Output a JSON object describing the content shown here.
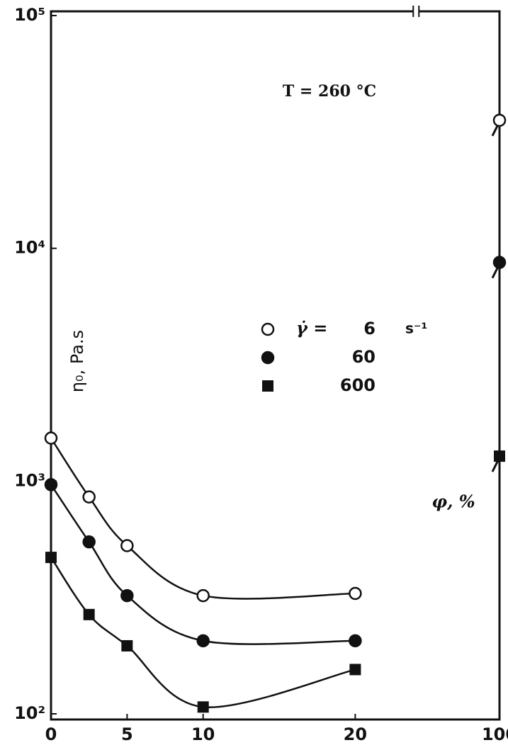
{
  "chart_data": {
    "type": "scatter",
    "annotation": "T = 260 °C",
    "y_label": "η₀, Pa.s",
    "x_label": "φ, %",
    "legend_prefix": "γ̇ =",
    "legend_unit": "s⁻¹",
    "log_y": true,
    "axis_break": true,
    "x": [
      0,
      2.5,
      5,
      10,
      20,
      100
    ],
    "series": [
      {
        "name": "6",
        "marker": "open-circle",
        "color": "#111111",
        "values": [
          1530,
          855,
          528,
          322,
          329,
          35500
        ]
      },
      {
        "name": "60",
        "marker": "circle",
        "color": "#111111",
        "values": [
          965,
          548,
          322,
          206,
          206,
          8700
        ]
      },
      {
        "name": "600",
        "marker": "square",
        "color": "#111111",
        "values": [
          470,
          267,
          196,
          107,
          155,
          1280
        ]
      }
    ],
    "xlim": [
      0,
      100
    ],
    "xticks": [
      0,
      5,
      10,
      20,
      100
    ],
    "ylim": [
      100,
      100000
    ],
    "yticks": [
      {
        "value": 100,
        "label": "10²"
      },
      {
        "value": 1000,
        "label": "10³"
      },
      {
        "value": 10000,
        "label": "10⁴"
      },
      {
        "value": 100000,
        "label": "10⁵"
      }
    ]
  }
}
